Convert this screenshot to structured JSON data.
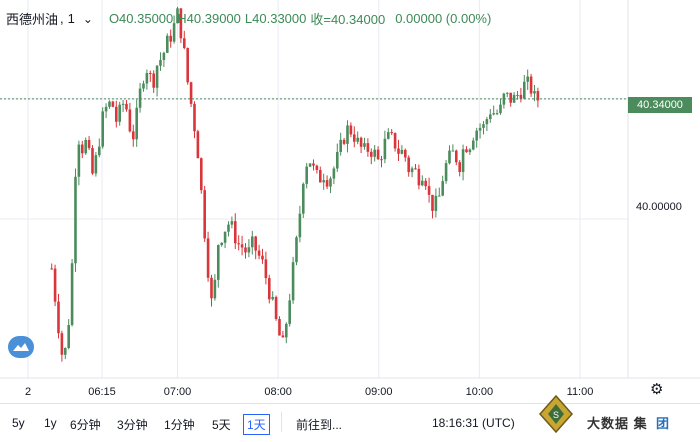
{
  "header": {
    "symbol": "西德州油",
    "interval": "1",
    "open": "O40.35000",
    "high": "H40.39000",
    "low": "L40.33000",
    "close": "收=40.34000",
    "change": "0.00000 (0.00%)"
  },
  "price_axis": {
    "current_price_label": "40.34000",
    "level_label": "40.00000"
  },
  "time_axis": {
    "labels": [
      "2",
      "06:15",
      "07:00",
      "08:00",
      "09:00",
      "10:00",
      "11:00"
    ]
  },
  "bottom_bar": {
    "timeframes": [
      "5y",
      "1y",
      "6分钟",
      "3分钟",
      "1分钟",
      "5天",
      "1天"
    ],
    "active_timeframe": "1天",
    "goto_label": "前往到...",
    "clock": "18:16:31 (UTC)"
  },
  "watermark": {
    "text": "大数据 集",
    "text2": "团"
  },
  "colors": {
    "up": "#4b8b5c",
    "down": "#d9353a",
    "price_line": "#4b8b5c",
    "grid": "#e8ebf2"
  },
  "chart_data": {
    "type": "candlestick",
    "title": "西德州油, 1",
    "ylim": [
      39.55,
      40.62
    ],
    "x_ticks": [
      "2",
      "06:15",
      "07:00",
      "08:00",
      "09:00",
      "10:00",
      "11:00"
    ],
    "y_ticks": [
      40.0,
      40.34
    ],
    "last_price": 40.34,
    "series": [
      {
        "close_path": [
          [
            "05:45",
            39.86
          ],
          [
            "05:48",
            39.74
          ],
          [
            "05:51",
            39.62
          ],
          [
            "05:54",
            39.63
          ],
          [
            "05:57",
            39.85
          ],
          [
            "06:00",
            40.25
          ],
          [
            "06:03",
            40.2
          ],
          [
            "06:06",
            40.22
          ],
          [
            "06:09",
            40.12
          ],
          [
            "06:12",
            40.18
          ],
          [
            "06:15",
            40.28
          ],
          [
            "06:18",
            40.32
          ],
          [
            "06:21",
            40.33
          ],
          [
            "06:24",
            40.27
          ],
          [
            "06:27",
            40.33
          ],
          [
            "06:30",
            40.31
          ],
          [
            "06:33",
            40.22
          ],
          [
            "06:36",
            40.3
          ],
          [
            "06:39",
            40.4
          ],
          [
            "06:42",
            40.43
          ],
          [
            "06:45",
            40.38
          ],
          [
            "06:48",
            40.44
          ],
          [
            "06:51",
            40.46
          ],
          [
            "06:54",
            40.5
          ],
          [
            "06:57",
            40.53
          ],
          [
            "07:00",
            40.58
          ],
          [
            "07:03",
            40.51
          ],
          [
            "07:06",
            40.39
          ],
          [
            "07:09",
            40.3
          ],
          [
            "07:12",
            40.2
          ],
          [
            "07:15",
            40.03
          ],
          [
            "07:18",
            39.87
          ],
          [
            "07:21",
            39.73
          ],
          [
            "07:24",
            39.93
          ],
          [
            "07:27",
            39.96
          ],
          [
            "07:30",
            39.99
          ],
          [
            "07:33",
            39.97
          ],
          [
            "07:36",
            39.93
          ],
          [
            "07:39",
            39.92
          ],
          [
            "07:42",
            39.9
          ],
          [
            "07:45",
            39.93
          ],
          [
            "07:48",
            39.9
          ],
          [
            "07:51",
            39.87
          ],
          [
            "07:54",
            39.81
          ],
          [
            "07:57",
            39.75
          ],
          [
            "08:00",
            39.68
          ],
          [
            "08:03",
            39.64
          ],
          [
            "08:06",
            39.75
          ],
          [
            "08:09",
            39.86
          ],
          [
            "08:12",
            39.97
          ],
          [
            "08:15",
            40.12
          ],
          [
            "08:18",
            40.18
          ],
          [
            "08:21",
            40.14
          ],
          [
            "08:24",
            40.11
          ],
          [
            "08:27",
            40.13
          ],
          [
            "08:30",
            40.11
          ],
          [
            "08:33",
            40.14
          ],
          [
            "08:36",
            40.18
          ],
          [
            "08:39",
            40.23
          ],
          [
            "08:42",
            40.26
          ],
          [
            "08:45",
            40.24
          ],
          [
            "08:48",
            40.21
          ],
          [
            "08:51",
            40.19
          ],
          [
            "08:54",
            40.2
          ],
          [
            "08:57",
            40.19
          ],
          [
            "09:00",
            40.16
          ],
          [
            "09:03",
            40.21
          ],
          [
            "09:06",
            40.23
          ],
          [
            "09:09",
            40.22
          ],
          [
            "09:12",
            40.19
          ],
          [
            "09:15",
            40.19
          ],
          [
            "09:18",
            40.14
          ],
          [
            "09:21",
            40.14
          ],
          [
            "09:24",
            40.12
          ],
          [
            "09:27",
            40.14
          ],
          [
            "09:30",
            40.06
          ],
          [
            "09:33",
            40.03
          ],
          [
            "09:36",
            40.06
          ],
          [
            "09:39",
            40.14
          ],
          [
            "09:42",
            40.17
          ],
          [
            "09:45",
            40.19
          ],
          [
            "09:48",
            40.15
          ],
          [
            "09:51",
            40.21
          ],
          [
            "09:54",
            40.21
          ],
          [
            "09:57",
            40.25
          ],
          [
            "10:00",
            40.26
          ],
          [
            "10:03",
            40.26
          ],
          [
            "10:06",
            40.31
          ],
          [
            "10:09",
            40.3
          ],
          [
            "10:12",
            40.3
          ],
          [
            "10:15",
            40.35
          ],
          [
            "10:18",
            40.34
          ],
          [
            "10:21",
            40.34
          ],
          [
            "10:24",
            40.36
          ],
          [
            "10:27",
            40.38
          ],
          [
            "10:30",
            40.38
          ],
          [
            "10:33",
            40.34
          ],
          [
            "10:36",
            40.34
          ]
        ]
      }
    ]
  }
}
